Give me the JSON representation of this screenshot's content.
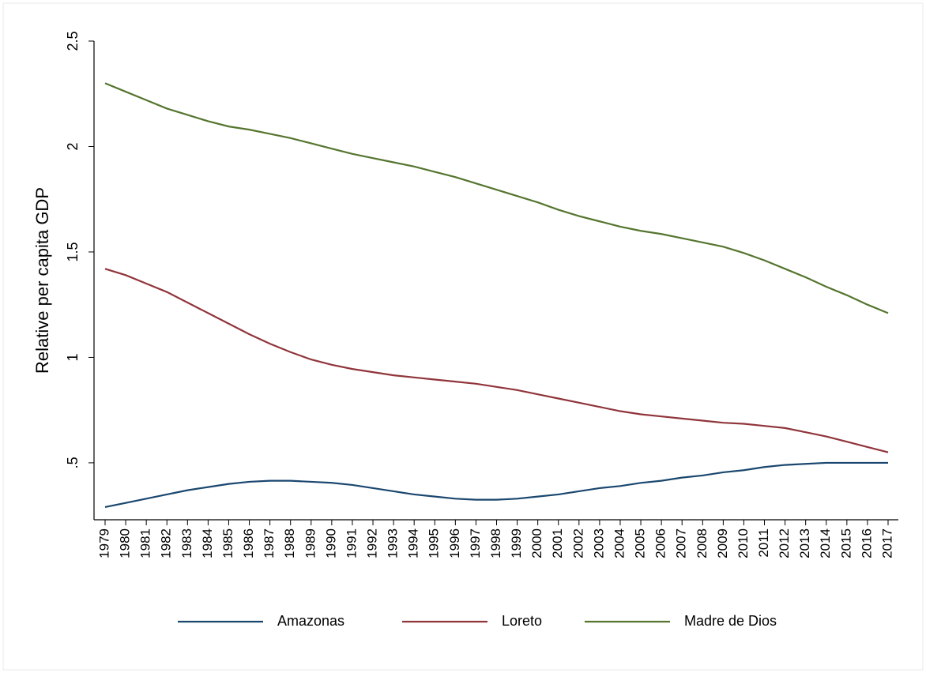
{
  "chart_data": {
    "type": "line",
    "y_label": "Relative per capita GDP",
    "categories": [
      "1979",
      "1980",
      "1981",
      "1982",
      "1983",
      "1984",
      "1985",
      "1986",
      "1987",
      "1988",
      "1989",
      "1990",
      "1991",
      "1992",
      "1993",
      "1994",
      "1995",
      "1996",
      "1997",
      "1998",
      "1999",
      "2000",
      "2001",
      "2002",
      "2003",
      "2004",
      "2005",
      "2006",
      "2007",
      "2008",
      "2009",
      "2010",
      "2011",
      "2012",
      "2013",
      "2014",
      "2015",
      "2016",
      "2017"
    ],
    "series": [
      {
        "name": "Amazonas",
        "color": "#1a476f",
        "values": [
          0.29,
          0.31,
          0.33,
          0.35,
          0.37,
          0.385,
          0.4,
          0.41,
          0.415,
          0.415,
          0.41,
          0.405,
          0.395,
          0.38,
          0.365,
          0.35,
          0.34,
          0.33,
          0.325,
          0.325,
          0.33,
          0.34,
          0.35,
          0.365,
          0.38,
          0.39,
          0.405,
          0.415,
          0.43,
          0.44,
          0.455,
          0.465,
          0.48,
          0.49,
          0.495,
          0.5,
          0.5,
          0.5,
          0.5
        ]
      },
      {
        "name": "Loreto",
        "color": "#90353b",
        "values": [
          1.42,
          1.39,
          1.35,
          1.31,
          1.26,
          1.21,
          1.16,
          1.11,
          1.065,
          1.025,
          0.99,
          0.965,
          0.945,
          0.93,
          0.915,
          0.905,
          0.895,
          0.885,
          0.875,
          0.86,
          0.845,
          0.825,
          0.805,
          0.785,
          0.765,
          0.745,
          0.73,
          0.72,
          0.71,
          0.7,
          0.69,
          0.685,
          0.675,
          0.665,
          0.645,
          0.625,
          0.6,
          0.575,
          0.55
        ]
      },
      {
        "name": "Madre de Dios",
        "color": "#55752f",
        "values": [
          2.3,
          2.26,
          2.22,
          2.18,
          2.15,
          2.12,
          2.095,
          2.08,
          2.06,
          2.04,
          2.015,
          1.99,
          1.965,
          1.945,
          1.925,
          1.905,
          1.88,
          1.855,
          1.825,
          1.795,
          1.765,
          1.735,
          1.7,
          1.67,
          1.645,
          1.62,
          1.6,
          1.585,
          1.565,
          1.545,
          1.525,
          1.495,
          1.46,
          1.42,
          1.38,
          1.335,
          1.295,
          1.25,
          1.21
        ]
      }
    ],
    "ylim": [
      0.23,
      2.5
    ],
    "yticks": [
      {
        "value": 0.5,
        "label": ".5"
      },
      1,
      1.5,
      2,
      2.5
    ],
    "legend": "bottom"
  }
}
